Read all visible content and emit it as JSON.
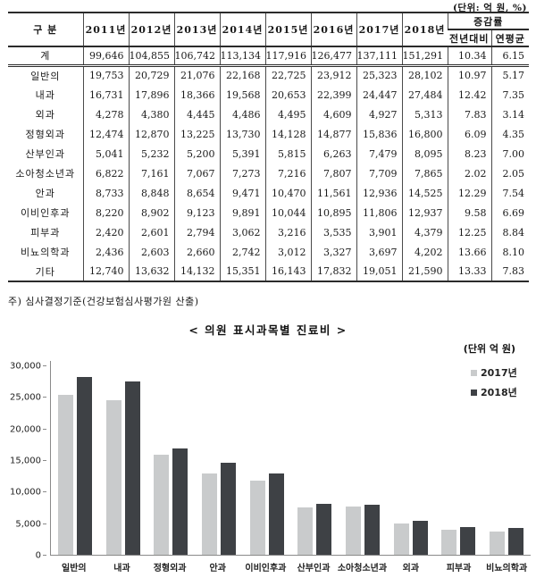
{
  "table": {
    "unit_label": "(단위: 억 원, %)",
    "col_header": "구 분",
    "year_headers": [
      "2011년",
      "2012년",
      "2013년",
      "2014년",
      "2015년",
      "2016년",
      "2017년",
      "2018년"
    ],
    "change_header": "증감률",
    "change_subheaders": [
      "전년대비",
      "연평균"
    ],
    "rows": [
      {
        "label": "계",
        "is_total": true,
        "values": [
          "99,646",
          "104,855",
          "106,742",
          "113,134",
          "117,916",
          "126,477",
          "137,111",
          "151,291",
          "10.34",
          "6.15"
        ]
      },
      {
        "label": "일반의",
        "is_total": false,
        "values": [
          "19,753",
          "20,729",
          "21,076",
          "22,168",
          "22,725",
          "23,912",
          "25,323",
          "28,102",
          "10.97",
          "5.17"
        ]
      },
      {
        "label": "내과",
        "is_total": false,
        "values": [
          "16,731",
          "17,896",
          "18,366",
          "19,568",
          "20,653",
          "22,399",
          "24,447",
          "27,484",
          "12.42",
          "7.35"
        ]
      },
      {
        "label": "외과",
        "is_total": false,
        "values": [
          "4,278",
          "4,380",
          "4,445",
          "4,486",
          "4,495",
          "4,609",
          "4,927",
          "5,313",
          "7.83",
          "3.14"
        ]
      },
      {
        "label": "정형외과",
        "is_total": false,
        "values": [
          "12,474",
          "12,870",
          "13,225",
          "13,730",
          "14,128",
          "14,877",
          "15,836",
          "16,800",
          "6.09",
          "4.35"
        ]
      },
      {
        "label": "산부인과",
        "is_total": false,
        "values": [
          "5,041",
          "5,232",
          "5,200",
          "5,391",
          "5,815",
          "6,263",
          "7,479",
          "8,095",
          "8.23",
          "7.00"
        ]
      },
      {
        "label": "소아청소년과",
        "is_total": false,
        "values": [
          "6,822",
          "7,161",
          "7,067",
          "7,273",
          "7,216",
          "7,807",
          "7,709",
          "7,865",
          "2.02",
          "2.05"
        ]
      },
      {
        "label": "안과",
        "is_total": false,
        "values": [
          "8,733",
          "8,848",
          "8,654",
          "9,471",
          "10,470",
          "11,561",
          "12,936",
          "14,525",
          "12.29",
          "7.54"
        ]
      },
      {
        "label": "이비인후과",
        "is_total": false,
        "values": [
          "8,220",
          "8,902",
          "9,123",
          "9,891",
          "10,044",
          "10,895",
          "11,806",
          "12,937",
          "9.58",
          "6.69"
        ]
      },
      {
        "label": "피부과",
        "is_total": false,
        "values": [
          "2,420",
          "2,601",
          "2,794",
          "3,062",
          "3,216",
          "3,535",
          "3,901",
          "4,379",
          "12.25",
          "8.84"
        ]
      },
      {
        "label": "비뇨의학과",
        "is_total": false,
        "values": [
          "2,436",
          "2,603",
          "2,660",
          "2,742",
          "3,012",
          "3,327",
          "3,697",
          "4,202",
          "13.66",
          "8.10"
        ]
      },
      {
        "label": "기타",
        "is_total": false,
        "values": [
          "12,740",
          "13,632",
          "14,132",
          "15,351",
          "16,143",
          "17,832",
          "19,051",
          "21,590",
          "13.33",
          "7.83"
        ]
      }
    ]
  },
  "footnote": "주) 심사결정기준(건강보험심사평가원 산출)",
  "chart_data": {
    "type": "bar",
    "title": "< 의원 표시과목별 진료비 >",
    "unit_label": "(단위 억 원)",
    "categories": [
      "일반의",
      "내과",
      "정형외과",
      "안과",
      "이비인후과",
      "산부인과",
      "소아청소년과",
      "외과",
      "피부과",
      "비뇨의학과"
    ],
    "series": [
      {
        "name": "2017년",
        "color": "#c9cbcc",
        "values": [
          25323,
          24447,
          15836,
          12936,
          11806,
          7479,
          7709,
          4927,
          3901,
          3697
        ]
      },
      {
        "name": "2018년",
        "color": "#3e4145",
        "values": [
          28102,
          27484,
          16800,
          14525,
          12937,
          8095,
          7865,
          5313,
          4379,
          4202
        ]
      }
    ],
    "ylabel": "",
    "xlabel": "",
    "ylim": [
      0,
      30000
    ],
    "y_ticks": [
      0,
      5000,
      10000,
      15000,
      20000,
      25000,
      30000
    ],
    "grid": false,
    "legend_position": "top-right"
  }
}
